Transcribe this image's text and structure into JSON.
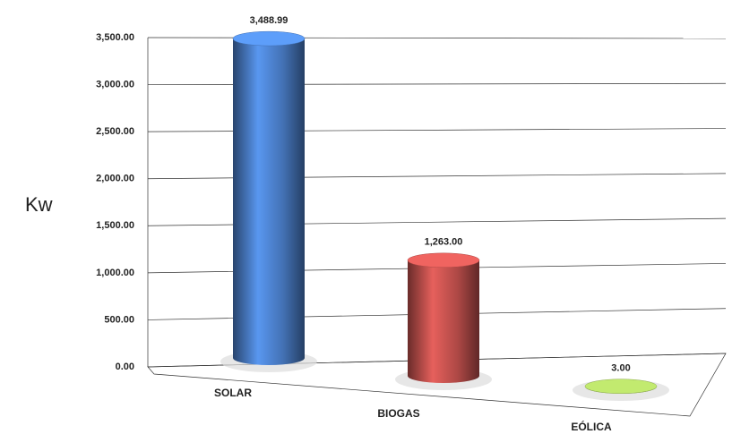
{
  "chart_data": {
    "type": "cylinder-bar",
    "y_label": "Kw",
    "categories": [
      "SOLAR",
      "BIOGAS",
      "EÓLICA"
    ],
    "values": [
      3488.99,
      1263,
      3
    ],
    "value_labels": [
      "3,488.99",
      "1,263.00",
      "3.00"
    ],
    "colors": [
      "#4a7ec8",
      "#c0504d",
      "#9bbb59"
    ],
    "ylim": [
      0,
      3500
    ],
    "yticks": [
      {
        "value": 0,
        "label": "0.00"
      },
      {
        "value": 500,
        "label": "500.00"
      },
      {
        "value": 1000,
        "label": "1,000.00"
      },
      {
        "value": 1500,
        "label": "1,500.00"
      },
      {
        "value": 2000,
        "label": "2,000.00"
      },
      {
        "value": 2500,
        "label": "2,500.00"
      },
      {
        "value": 3000,
        "label": "3,000.00"
      },
      {
        "value": 3500,
        "label": "3,500.00"
      }
    ],
    "grid": true
  }
}
